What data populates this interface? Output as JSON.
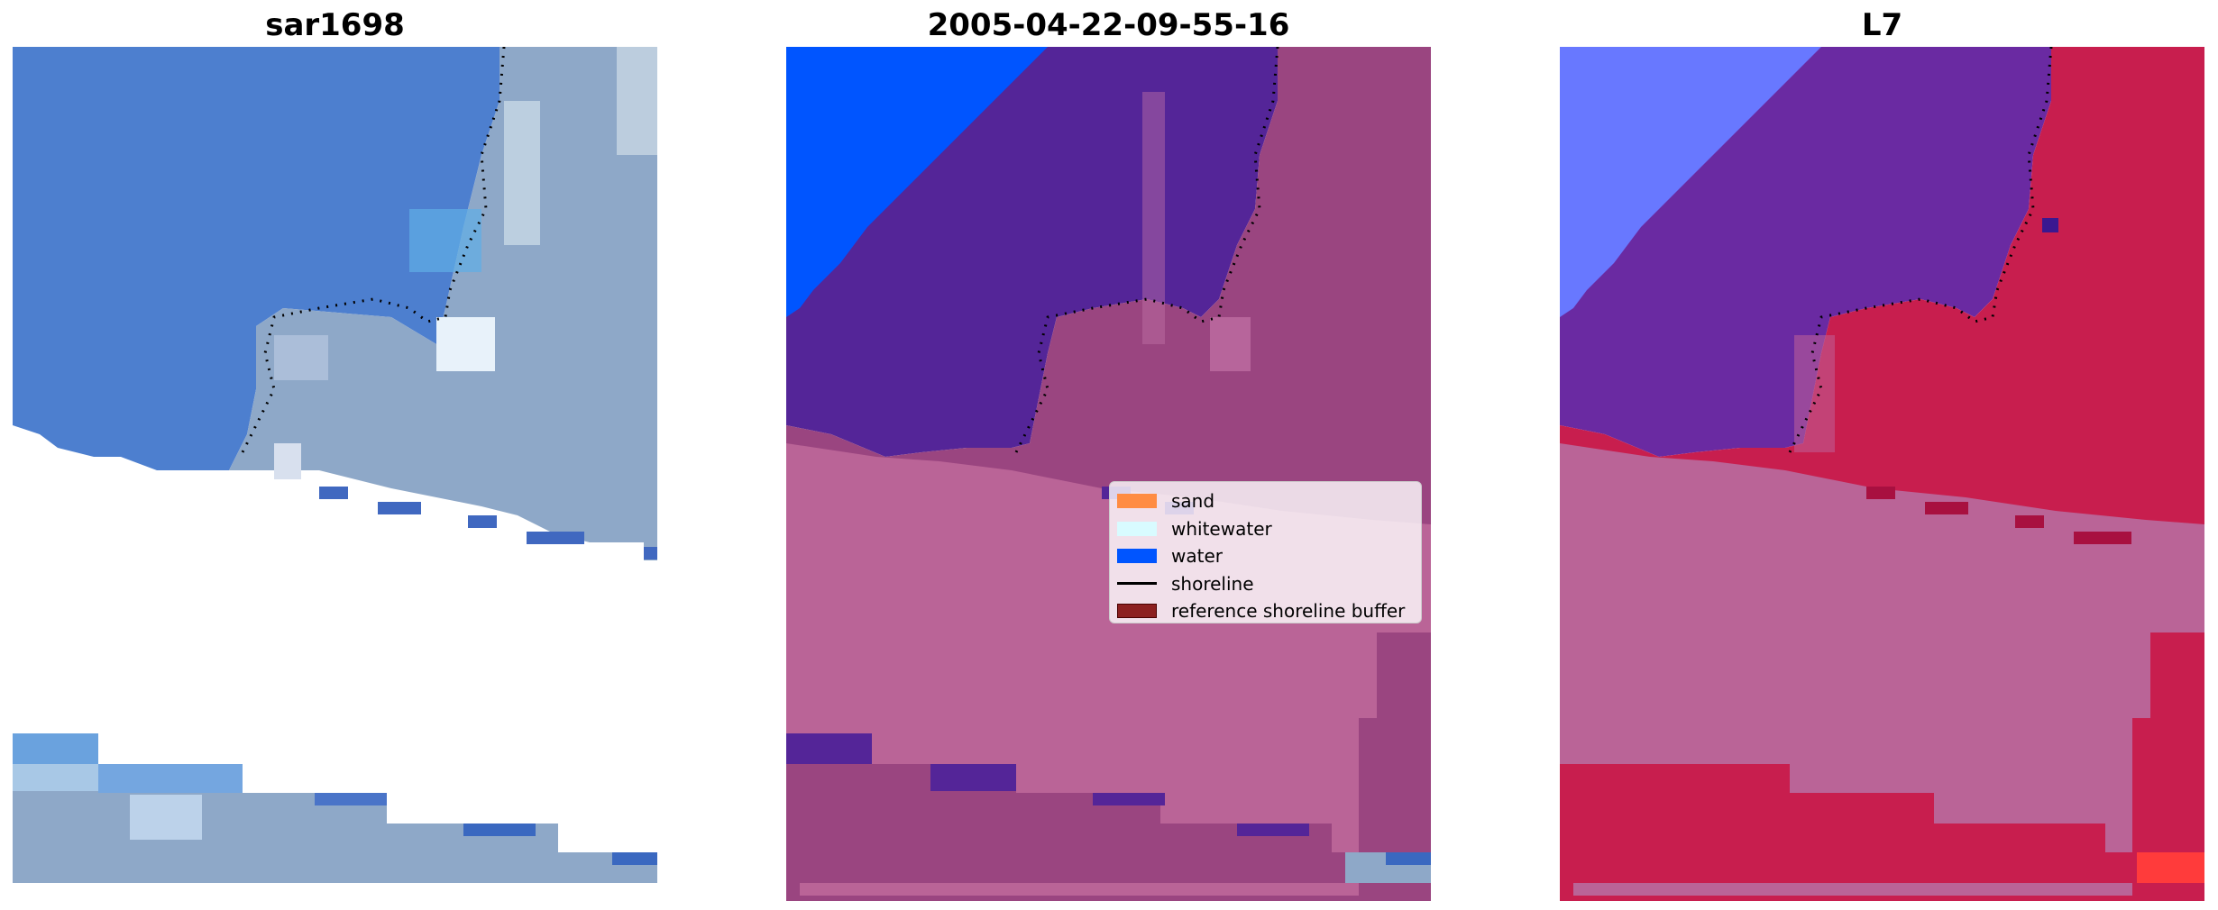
{
  "panels": [
    {
      "title": "sar1698",
      "image": "true-color satellite image with shoreline"
    },
    {
      "title": "2005-04-22-09-55-16",
      "image": "classified image with shoreline"
    },
    {
      "title": "L7",
      "image": "false-color index image with shoreline"
    }
  ],
  "legend": {
    "items": [
      {
        "label": "sand",
        "color": "#ff8c42",
        "kind": "patch"
      },
      {
        "label": "whitewater",
        "color": "#d8fbff",
        "kind": "patch"
      },
      {
        "label": "water",
        "color": "#0055ff",
        "kind": "patch"
      },
      {
        "label": "shoreline",
        "color": "#000000",
        "kind": "line"
      },
      {
        "label": "reference shoreline buffer",
        "color": "#8c2020",
        "kind": "patch"
      }
    ]
  },
  "colors": {
    "sar_water": "#4d7fcf",
    "sar_land": "#8ea8c8",
    "class_water": "#0055ff",
    "class_sea": "#542598",
    "class_land": "#9a4580",
    "class_buffer": "#ba6497",
    "l7_blue": "#6878ff",
    "l7_purple": "#6a2aa2",
    "l7_red": "#c81e4e",
    "l7_buffer": "#ba6497"
  }
}
